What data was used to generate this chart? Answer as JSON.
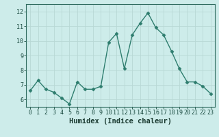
{
  "x": [
    0,
    1,
    2,
    3,
    4,
    5,
    6,
    7,
    8,
    9,
    10,
    11,
    12,
    13,
    14,
    15,
    16,
    17,
    18,
    19,
    20,
    21,
    22,
    23
  ],
  "y": [
    6.6,
    7.3,
    6.7,
    6.5,
    6.1,
    5.7,
    7.2,
    6.7,
    6.7,
    6.9,
    9.9,
    10.5,
    8.1,
    10.4,
    11.2,
    11.9,
    10.9,
    10.4,
    9.3,
    8.1,
    7.2,
    7.2,
    6.9,
    6.4
  ],
  "xlim": [
    -0.5,
    23.5
  ],
  "ylim": [
    5.5,
    12.5
  ],
  "yticks": [
    6,
    7,
    8,
    9,
    10,
    11,
    12
  ],
  "xticks": [
    0,
    1,
    2,
    3,
    4,
    5,
    6,
    7,
    8,
    9,
    10,
    11,
    12,
    13,
    14,
    15,
    16,
    17,
    18,
    19,
    20,
    21,
    22,
    23
  ],
  "xlabel": "Humidex (Indice chaleur)",
  "line_color": "#2e7d6e",
  "marker": "D",
  "marker_size": 2.5,
  "bg_color": "#cdecea",
  "grid_color": "#b8d8d5",
  "axis_color": "#2e6b5e",
  "tick_color": "#1a4a40",
  "xlabel_color": "#1a3a30",
  "font_size_ticks": 6,
  "font_size_xlabel": 7.5
}
